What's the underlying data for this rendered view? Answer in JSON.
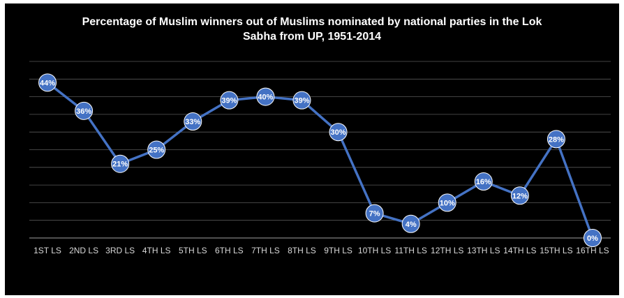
{
  "chart_data": {
    "type": "line",
    "title_line1": "Percentage of Muslim winners out of Muslims nominated by national parties in the Lok",
    "title_line2": "Sabha from UP, 1951-2014",
    "xlabel": "",
    "ylabel": "",
    "ylim": [
      0,
      50
    ],
    "grid": true,
    "legend": "none",
    "categories": [
      "1ST LS",
      "2ND LS",
      "3RD LS",
      "4TH LS",
      "5TH LS",
      "6TH LS",
      "7TH LS",
      "8TH LS",
      "9TH LS",
      "10TH LS",
      "11TH LS",
      "12TH LS",
      "13TH LS",
      "14TH LS",
      "15TH LS",
      "16TH LS"
    ],
    "series": [
      {
        "values": [
          44,
          36,
          21,
          25,
          33,
          39,
          40,
          39,
          30,
          7,
          4,
          10,
          16,
          12,
          28,
          0
        ],
        "labels": [
          "44%",
          "36%",
          "21%",
          "25%",
          "33%",
          "39%",
          "40%",
          "39%",
          "30%",
          "7%",
          "4%",
          "10%",
          "16%",
          "12%",
          "28%",
          "0%"
        ]
      }
    ]
  },
  "colors": {
    "background": "#000000",
    "line": "#4472c4",
    "marker": "#4472c4",
    "marker_edge": "#ffffff",
    "gridline": "#595959",
    "text": "#ffffff"
  }
}
